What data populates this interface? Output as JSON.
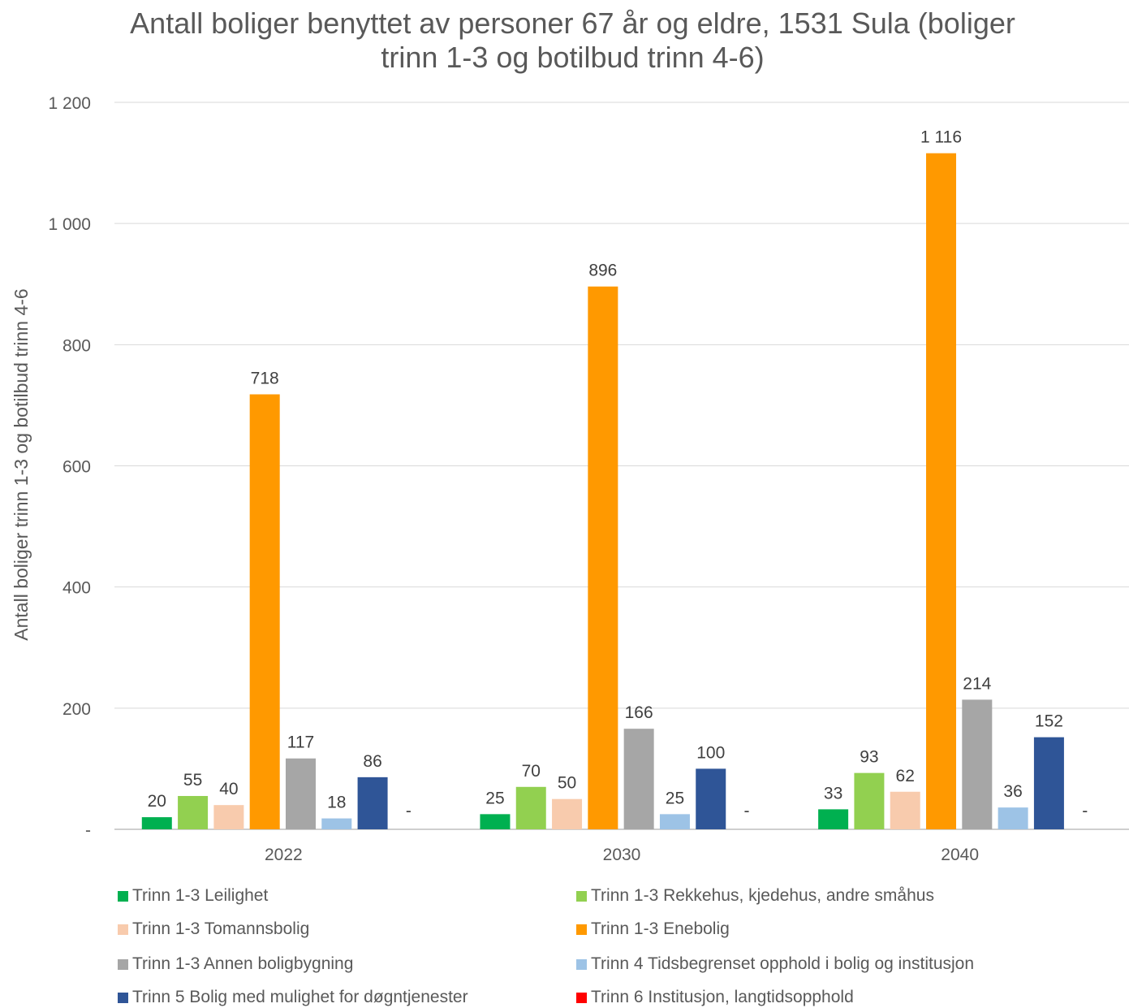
{
  "chart_data": {
    "type": "bar",
    "title": [
      "Antall boliger benyttet av personer 67 år og eldre, 1531 Sula (boliger",
      "trinn 1-3 og botilbud trinn 4-6)"
    ],
    "ylabel": "Antall boliger trinn 1-3 og botilbud trinn 4-6",
    "xlabel": "",
    "ylim": [
      0,
      1200
    ],
    "yticks": [
      0,
      200,
      400,
      600,
      800,
      1000,
      1200
    ],
    "ytick_labels": [
      "-",
      "200",
      "400",
      "600",
      "800",
      "1 000",
      "1 200"
    ],
    "categories": [
      "2022",
      "2030",
      "2040"
    ],
    "grid": true,
    "legend_position": "bottom",
    "series": [
      {
        "name": "Trinn 1-3 Leilighet",
        "color": "#00B050",
        "values": [
          20,
          25,
          33
        ],
        "labels": [
          "20",
          "25",
          "33"
        ]
      },
      {
        "name": "Trinn 1-3 Rekkehus, kjedehus, andre småhus",
        "color": "#92D050",
        "values": [
          55,
          70,
          93
        ],
        "labels": [
          "55",
          "70",
          "93"
        ]
      },
      {
        "name": "Trinn 1-3 Tomannsbolig",
        "color": "#F8CBAD",
        "values": [
          40,
          50,
          62
        ],
        "labels": [
          "40",
          "50",
          "62"
        ]
      },
      {
        "name": "Trinn 1-3 Enebolig",
        "color": "#FF9900",
        "values": [
          718,
          896,
          1116
        ],
        "labels": [
          "718",
          "896",
          "1 116"
        ]
      },
      {
        "name": "Trinn 1-3 Annen boligbygning",
        "color": "#A6A6A6",
        "values": [
          117,
          166,
          214
        ],
        "labels": [
          "117",
          "166",
          "214"
        ]
      },
      {
        "name": "Trinn 4 Tidsbegrenset opphold i bolig og institusjon",
        "color": "#9DC3E6",
        "values": [
          18,
          25,
          36
        ],
        "labels": [
          "18",
          "25",
          "36"
        ]
      },
      {
        "name": "Trinn 5 Bolig med mulighet for døgntjenester",
        "color": "#2F5597",
        "values": [
          86,
          100,
          152
        ],
        "labels": [
          "86",
          "100",
          "152"
        ]
      },
      {
        "name": "Trinn 6 Institusjon, langtidsopphold",
        "color": "#FF0000",
        "values": [
          0,
          0,
          0
        ],
        "labels": [
          "-",
          "-",
          "-"
        ]
      }
    ]
  }
}
